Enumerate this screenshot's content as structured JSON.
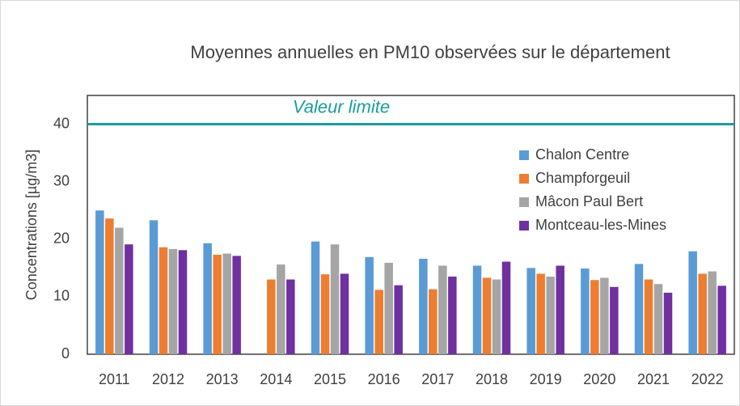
{
  "chart_data": {
    "type": "bar",
    "title": "Moyennes annuelles  en PM10 observées sur le département",
    "y_label": "Concentrations [µg/m3]",
    "categories": [
      "2011",
      "2012",
      "2013",
      "2014",
      "2015",
      "2016",
      "2017",
      "2018",
      "2019",
      "2020",
      "2021",
      "2022"
    ],
    "series": [
      {
        "name": "Chalon Centre",
        "color": "#5b9bd5",
        "values": [
          25,
          23.3,
          19.3,
          null,
          19.6,
          16.9,
          16.6,
          15.4,
          15,
          14.9,
          15.7,
          17.9
        ]
      },
      {
        "name": "Champforgeuil",
        "color": "#ed7d31",
        "values": [
          23.6,
          18.6,
          17.3,
          13,
          13.9,
          11.2,
          11.3,
          13.3,
          14,
          12.9,
          13,
          14
        ]
      },
      {
        "name": "Mâcon Paul Bert",
        "color": "#a5a5a5",
        "values": [
          22,
          18.3,
          17.5,
          15.6,
          19.1,
          15.9,
          15.4,
          13,
          13.5,
          13.3,
          12.2,
          14.4
        ]
      },
      {
        "name": "Montceau-les-Mines",
        "color": "#7030a0",
        "values": [
          19.1,
          18.1,
          17.1,
          13,
          14,
          12,
          13.5,
          16.1,
          15.4,
          11.7,
          10.7,
          11.9
        ]
      }
    ],
    "ylim": [
      0,
      45
    ],
    "yticks": [
      0,
      10,
      20,
      30,
      40
    ],
    "grid": false,
    "reference_line": {
      "value": 40,
      "label": "Valeur limite",
      "color": "#1a9e9a"
    },
    "legend_position": "right"
  }
}
